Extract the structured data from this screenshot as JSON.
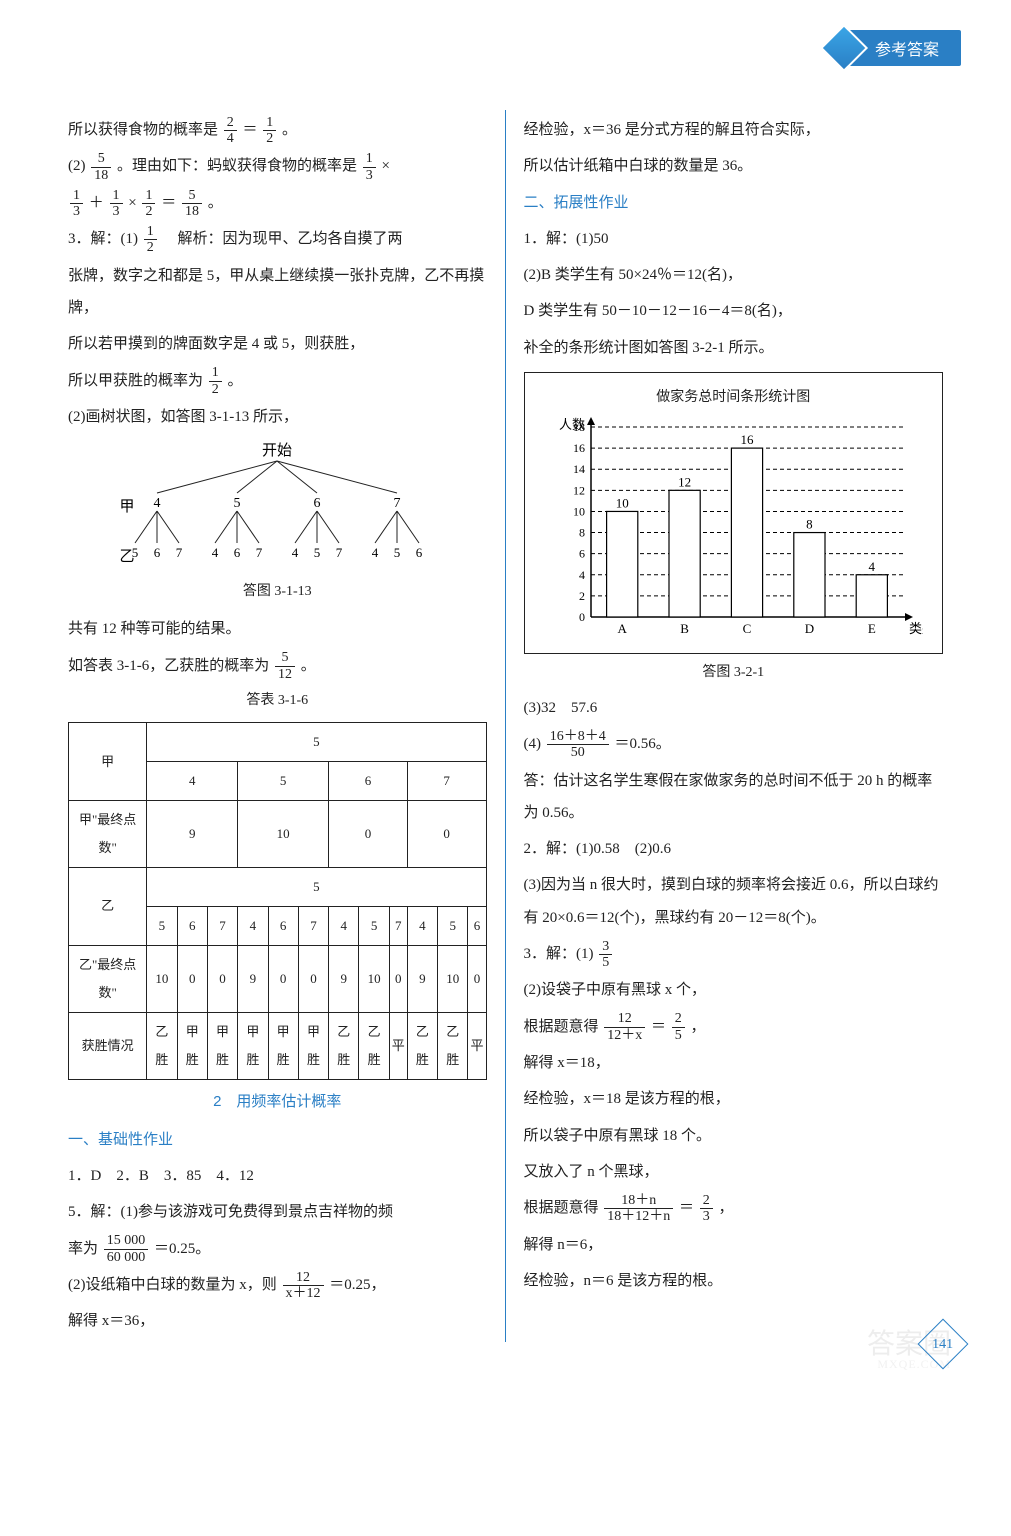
{
  "header": {
    "label": "参考答案"
  },
  "left": {
    "l1a": "所以获得食物的概率是",
    "l1_frac1": {
      "num": "2",
      "den": "4"
    },
    "l1b": "＝",
    "l1_frac2": {
      "num": "1",
      "den": "2"
    },
    "l1c": "。",
    "l2a": "(2)",
    "l2_frac": {
      "num": "5",
      "den": "18"
    },
    "l2b": "。理由如下：蚂蚁获得食物的概率是",
    "l2_frac2": {
      "num": "1",
      "den": "3"
    },
    "l2c": "×",
    "l3_frac1": {
      "num": "1",
      "den": "3"
    },
    "l3a": "＋",
    "l3_frac2": {
      "num": "1",
      "den": "3"
    },
    "l3b": "×",
    "l3_frac3": {
      "num": "1",
      "den": "2"
    },
    "l3c": "＝",
    "l3_frac4": {
      "num": "5",
      "den": "18"
    },
    "l3d": "。",
    "l4a": "3．解：(1)",
    "l4_frac": {
      "num": "1",
      "den": "2"
    },
    "l4b": "　解析：因为现甲、乙均各自摸了两",
    "l5": "张牌，数字之和都是 5，甲从桌上继续摸一张扑克牌，乙不再摸牌，",
    "l6": "所以若甲摸到的牌面数字是 4 或 5，则获胜，",
    "l7a": "所以甲获胜的概率为",
    "l7_frac": {
      "num": "1",
      "den": "2"
    },
    "l7b": "。",
    "l8": "(2)画树状图，如答图 3-1-13 所示，",
    "tree": {
      "root": "开始",
      "row1_label": "甲",
      "row1": [
        "4",
        "5",
        "6",
        "7"
      ],
      "row2_label": "乙",
      "row2": [
        [
          "5",
          "6",
          "7"
        ],
        [
          "4",
          "6",
          "7"
        ],
        [
          "4",
          "5",
          "7"
        ],
        [
          "4",
          "5",
          "6"
        ]
      ],
      "caption": "答图 3-1-13",
      "line_color": "#222"
    },
    "l9": "共有 12 种等可能的结果。",
    "l10a": "如答表 3-1-6，乙获胜的概率为",
    "l10_frac": {
      "num": "5",
      "den": "12"
    },
    "l10b": "。",
    "table_caption": "答表 3-1-6",
    "table": {
      "r1": [
        "甲",
        "5"
      ],
      "r2": [
        "",
        "4",
        "5",
        "6",
        "7"
      ],
      "r3": [
        "甲\"最终点数\"",
        "9",
        "10",
        "0",
        "0"
      ],
      "r4": [
        "乙",
        "5"
      ],
      "r5": [
        "",
        "5",
        "6",
        "7",
        "4",
        "6",
        "7",
        "4",
        "5",
        "7",
        "4",
        "5",
        "6"
      ],
      "r6": [
        "乙\"最终点数\"",
        "10",
        "0",
        "0",
        "9",
        "0",
        "0",
        "9",
        "10",
        "0",
        "9",
        "10",
        "0"
      ],
      "r7": [
        "获胜情况",
        "乙胜",
        "甲胜",
        "甲胜",
        "甲胜",
        "甲胜",
        "甲胜",
        "乙胜",
        "乙胜",
        "平",
        "乙胜",
        "乙胜",
        "平"
      ]
    },
    "section_title": "2　用频率估计概率",
    "sub1": "一、基础性作业",
    "l11": "1．D　2．B　3．85　4．12",
    "l12": "5．解：(1)参与该游戏可免费得到景点吉祥物的频",
    "l13a": "率为",
    "l13_frac": {
      "num": "15 000",
      "den": "60 000"
    },
    "l13b": "＝0.25。",
    "l14a": "(2)设纸箱中白球的数量为 x，则",
    "l14_frac": {
      "num": "12",
      "den": "x＋12"
    },
    "l14b": "＝0.25，",
    "l15": "解得 x＝36，"
  },
  "right": {
    "r1": "经检验，x＝36 是分式方程的解且符合实际，",
    "r2": "所以估计纸箱中白球的数量是 36。",
    "sub2": "二、拓展性作业",
    "r3": "1．解：(1)50",
    "r4": "(2)B 类学生有 50×24％＝12(名)，",
    "r5": "D 类学生有 50－10－12－16－4＝8(名)，",
    "r6": "补全的条形统计图如答图 3-2-1 所示。",
    "chart": {
      "title": "做家务总时间条形统计图",
      "y_label": "人数",
      "x_label": "类别",
      "categories": [
        "A",
        "B",
        "C",
        "D",
        "E"
      ],
      "values": [
        10,
        12,
        16,
        8,
        4
      ],
      "value_labels": [
        "10",
        "12",
        "16",
        "8",
        "4"
      ],
      "ymax": 18,
      "ytick_step": 2,
      "bar_color": "#ffffff",
      "bar_border": "#000000",
      "grid_color": "#000000",
      "background": "#ffffff",
      "caption": "答图 3-2-1"
    },
    "r7": "(3)32　57.6",
    "r8a": "(4)",
    "r8_frac": {
      "num": "16＋8＋4",
      "den": "50"
    },
    "r8b": "＝0.56。",
    "r9": "答：估计这名学生寒假在家做家务的总时间不低于 20 h 的概率为 0.56。",
    "r10": "2．解：(1)0.58　(2)0.6",
    "r11": "(3)因为当 n 很大时，摸到白球的频率将会接近 0.6，所以白球约有 20×0.6＝12(个)，黑球约有 20－12＝8(个)。",
    "r12a": "3．解：(1)",
    "r12_frac": {
      "num": "3",
      "den": "5"
    },
    "r13": "(2)设袋子中原有黑球 x 个，",
    "r14a": "根据题意得",
    "r14_frac": {
      "num": "12",
      "den": "12＋x"
    },
    "r14b": "＝",
    "r14_frac2": {
      "num": "2",
      "den": "5"
    },
    "r14c": "，",
    "r15": "解得 x＝18，",
    "r16": "经检验，x＝18 是该方程的根，",
    "r17": "所以袋子中原有黑球 18 个。",
    "r18": "又放入了 n 个黑球，",
    "r19a": "根据题意得",
    "r19_frac": {
      "num": "18＋n",
      "den": "18＋12＋n"
    },
    "r19b": "＝",
    "r19_frac2": {
      "num": "2",
      "den": "3"
    },
    "r19c": "，",
    "r20": "解得 n＝6，",
    "r21": "经检验，n＝6 是该方程的根。"
  },
  "page_number": "141",
  "watermark": "答案圈",
  "watermark2": "MXQE.COM"
}
